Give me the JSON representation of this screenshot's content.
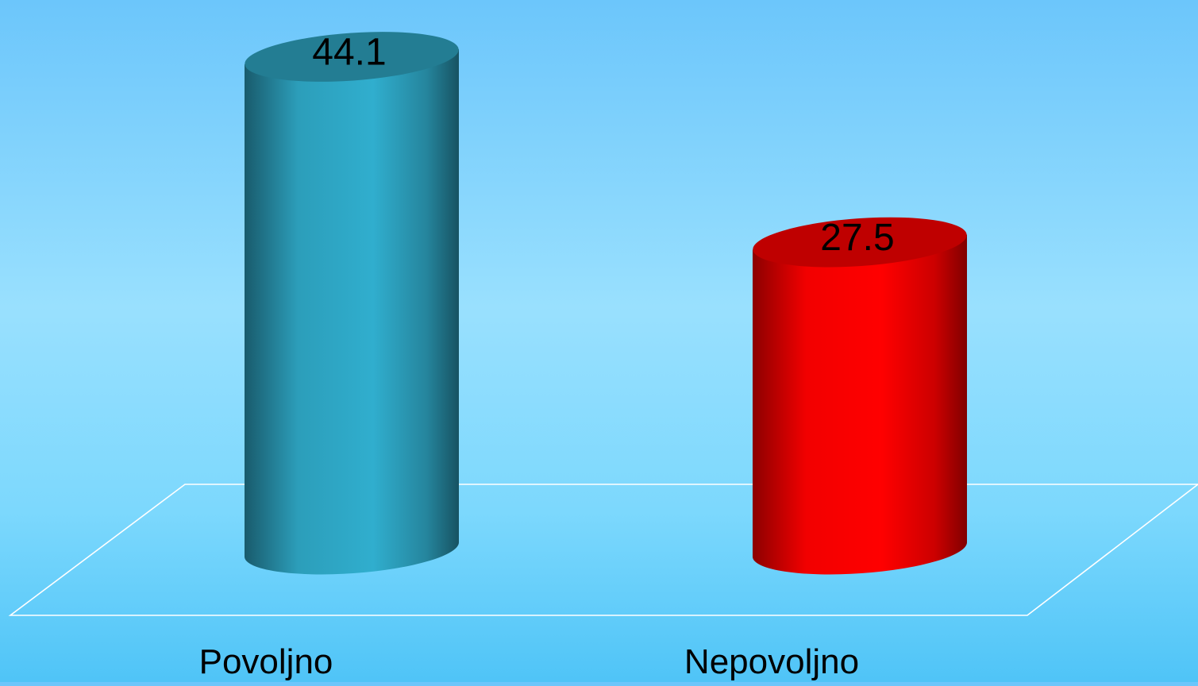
{
  "chart_data": {
    "type": "bar",
    "style": "3d-cylinder",
    "categories": [
      "Povoljno",
      "Nepovoljno"
    ],
    "values": [
      44.1,
      27.5
    ],
    "data_labels": [
      "44.1",
      "27.5"
    ],
    "bar_colors": [
      "#2ea6c4",
      "#ff0000"
    ],
    "title": "",
    "xlabel": "",
    "ylabel": "",
    "ylim": [
      0,
      45
    ],
    "grid": false,
    "legend": "none"
  }
}
